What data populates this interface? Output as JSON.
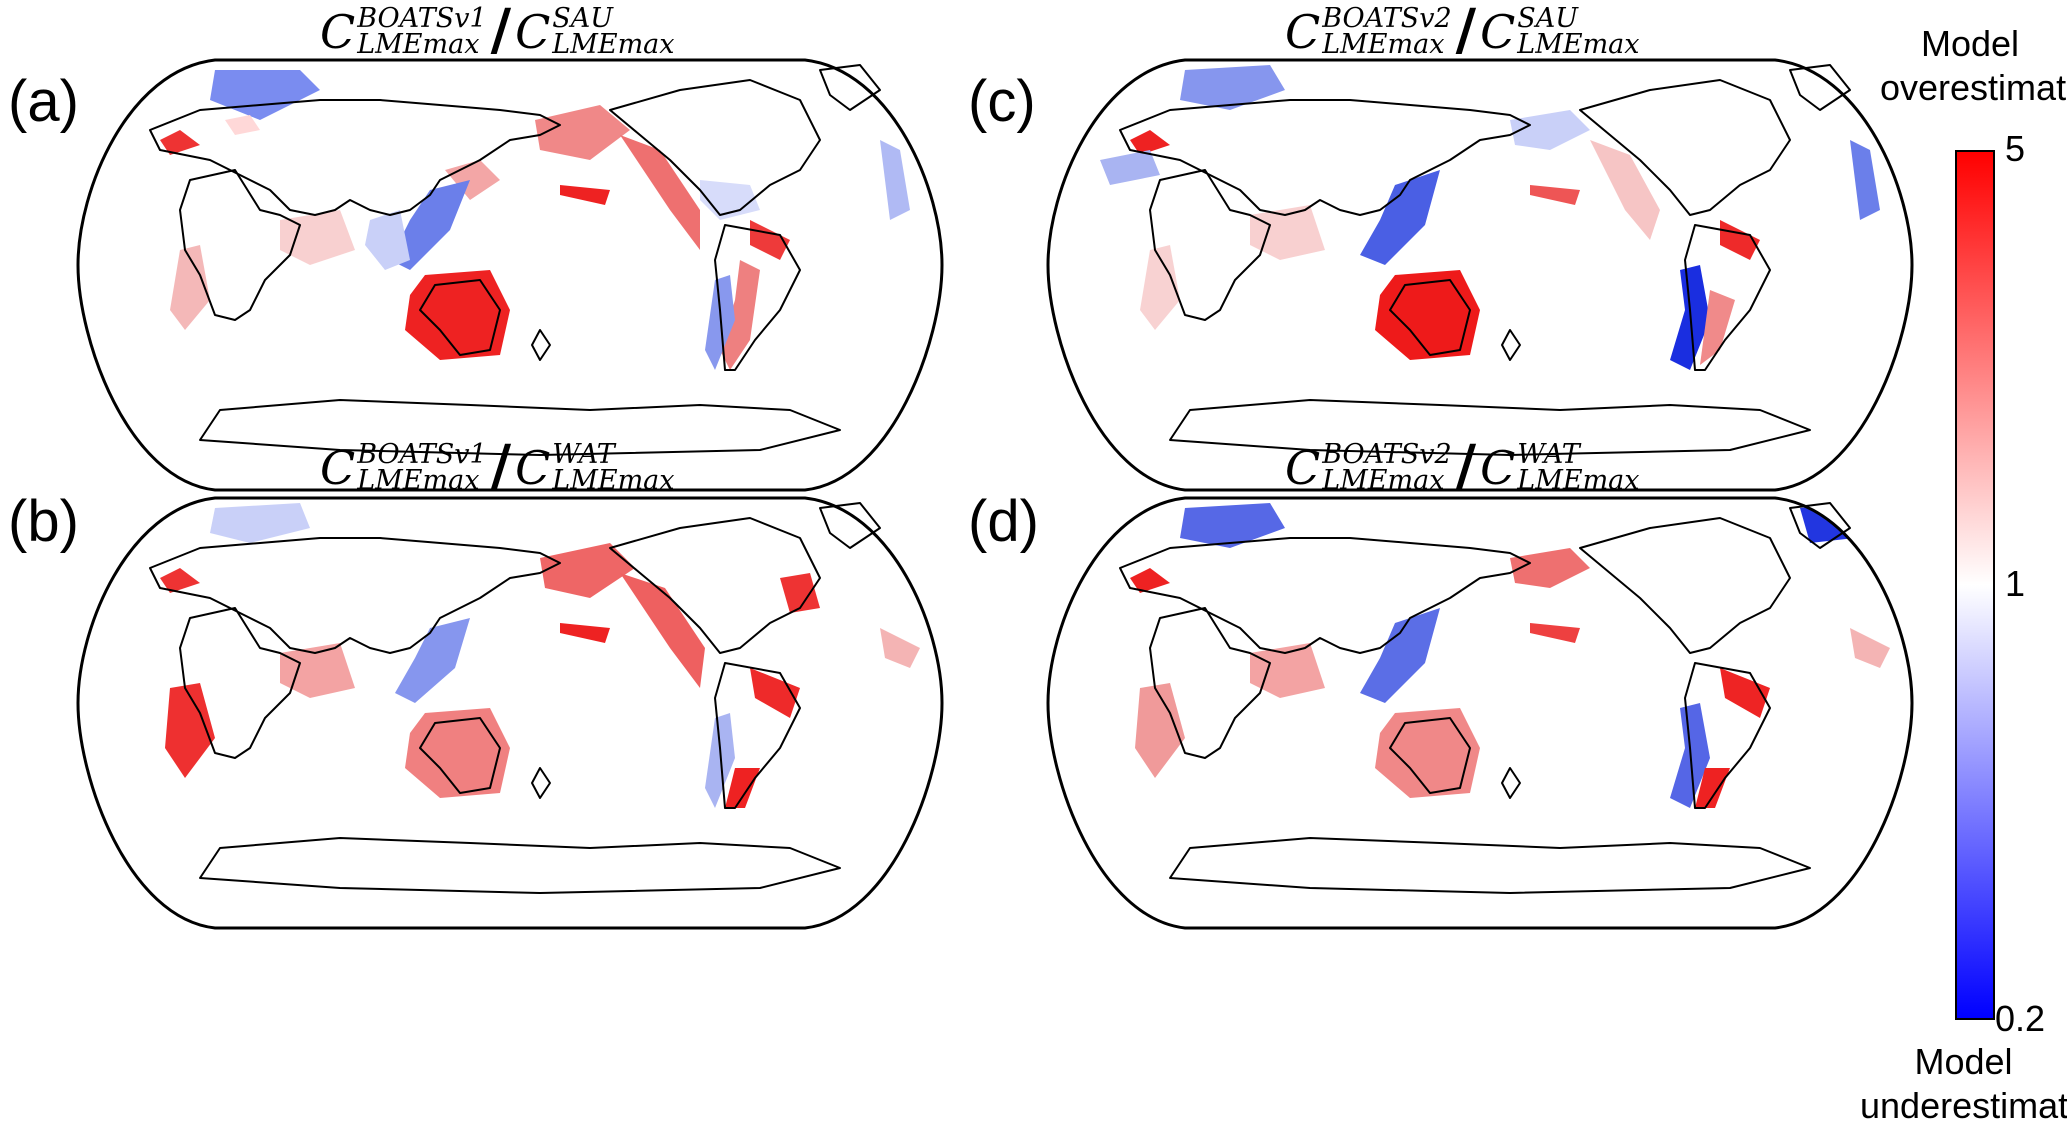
{
  "panels": [
    {
      "id": "a",
      "label": "(a)",
      "numerator": {
        "base": "C",
        "sup": "BOATSv1",
        "sub": "LMEmax"
      },
      "denominator": {
        "base": "C",
        "sup": "SAU",
        "sub": "LMEmax"
      }
    },
    {
      "id": "b",
      "label": "(b)",
      "numerator": {
        "base": "C",
        "sup": "BOATSv1",
        "sub": "LMEmax"
      },
      "denominator": {
        "base": "C",
        "sup": "WAT",
        "sub": "LMEmax"
      }
    },
    {
      "id": "c",
      "label": "(c)",
      "numerator": {
        "base": "C",
        "sup": "BOATSv2",
        "sub": "LMEmax"
      },
      "denominator": {
        "base": "C",
        "sup": "SAU",
        "sub": "LMEmax"
      }
    },
    {
      "id": "d",
      "label": "(d)",
      "numerator": {
        "base": "C",
        "sup": "BOATSv2",
        "sub": "LMEmax"
      },
      "denominator": {
        "base": "C",
        "sup": "WAT",
        "sub": "LMEmax"
      }
    }
  ],
  "colorbar": {
    "top_label": "Model overestimate",
    "bottom_label": "Model underestimate",
    "ticks": [
      "5",
      "1",
      "0.2"
    ],
    "colors": {
      "max": "#ff0000",
      "mid": "#ffffff",
      "min": "#0000ff"
    }
  },
  "legend_colors": {
    "overestimate": "#e8312f",
    "underestimate": "#2a3de8",
    "land_outline": "#000000"
  }
}
